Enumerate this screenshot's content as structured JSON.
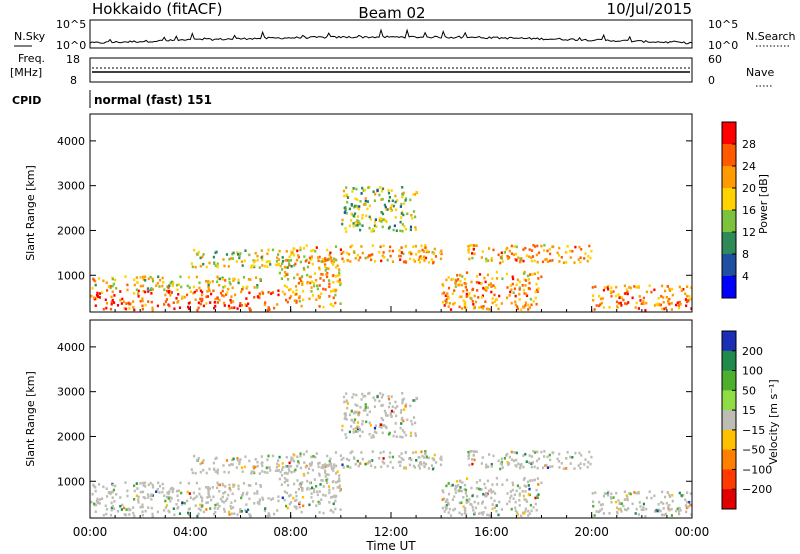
{
  "header": {
    "station": "Hokkaido (fitACF)",
    "beam": "Beam 02",
    "date": "10/Jul/2015"
  },
  "noise_panel": {
    "left_label": "N.Sky",
    "right_label": "N.Search",
    "left_ticks": [
      "10^5",
      "10^0"
    ],
    "right_ticks": [
      "10^5",
      "10^0"
    ]
  },
  "freq_panel": {
    "left_label_1": "Freq.",
    "left_label_2": "[MHz]",
    "right_label": "Nave",
    "left_ticks": [
      "18",
      "8"
    ],
    "right_ticks": [
      "60",
      "0"
    ]
  },
  "cpid_panel": {
    "label": "CPID",
    "program": "normal (fast) 151"
  },
  "power_panel": {
    "ylabel": "Slant Range [km]",
    "yticks": [
      "4000",
      "3000",
      "2000",
      "1000"
    ],
    "cbar_label": "Power [dB]",
    "cbar_ticks": [
      "28",
      "24",
      "20",
      "16",
      "12",
      "8",
      "4"
    ],
    "cbar_colors": [
      "#ff0000",
      "#ff5a00",
      "#ff9a00",
      "#ffd200",
      "#7cc23c",
      "#2e8b57",
      "#1e4fa0",
      "#0000ff"
    ]
  },
  "velocity_panel": {
    "ylabel": "Slant Range [km]",
    "yticks": [
      "4000",
      "3000",
      "2000",
      "1000"
    ],
    "cbar_label": "Velocity [m s⁻¹]",
    "cbar_ticks": [
      "200",
      "100",
      "50",
      "15",
      "−15",
      "−50",
      "−100",
      "−200"
    ],
    "cbar_colors": [
      "#1a2fb5",
      "#1f8a4c",
      "#4caf2e",
      "#8fdc45",
      "#bdbdb5",
      "#ffc000",
      "#ff8000",
      "#ff3a00",
      "#e00000"
    ]
  },
  "xaxis": {
    "ticks": [
      "00:00",
      "04:00",
      "08:00",
      "12:00",
      "16:00",
      "20:00",
      "00:00"
    ],
    "label": "Time UT"
  },
  "chart_data": {
    "type": "heatmap",
    "x_range_hours": [
      0,
      24
    ],
    "y_range_km": [
      180,
      4600
    ],
    "power_regions_dB": [
      {
        "t": [
          0,
          7.5
        ],
        "r": [
          200,
          700
        ],
        "value": 26
      },
      {
        "t": [
          0,
          7
        ],
        "r": [
          700,
          1000
        ],
        "value": 18
      },
      {
        "t": [
          4,
          8
        ],
        "r": [
          1200,
          1600
        ],
        "value": 16
      },
      {
        "t": [
          7.5,
          10
        ],
        "r": [
          300,
          1400
        ],
        "value": 20
      },
      {
        "t": [
          8,
          14
        ],
        "r": [
          1300,
          1700
        ],
        "value": 22
      },
      {
        "t": [
          10,
          13
        ],
        "r": [
          2000,
          3000
        ],
        "value": 14
      },
      {
        "t": [
          14,
          18
        ],
        "r": [
          200,
          1100
        ],
        "value": 22
      },
      {
        "t": [
          15,
          20
        ],
        "r": [
          1300,
          1700
        ],
        "value": 22
      },
      {
        "t": [
          20,
          24
        ],
        "r": [
          200,
          800
        ],
        "value": 24
      }
    ],
    "velocity_note": "velocities mostly between -15 and 15 m/s (ground scatter), with scattered positive and negative values"
  }
}
